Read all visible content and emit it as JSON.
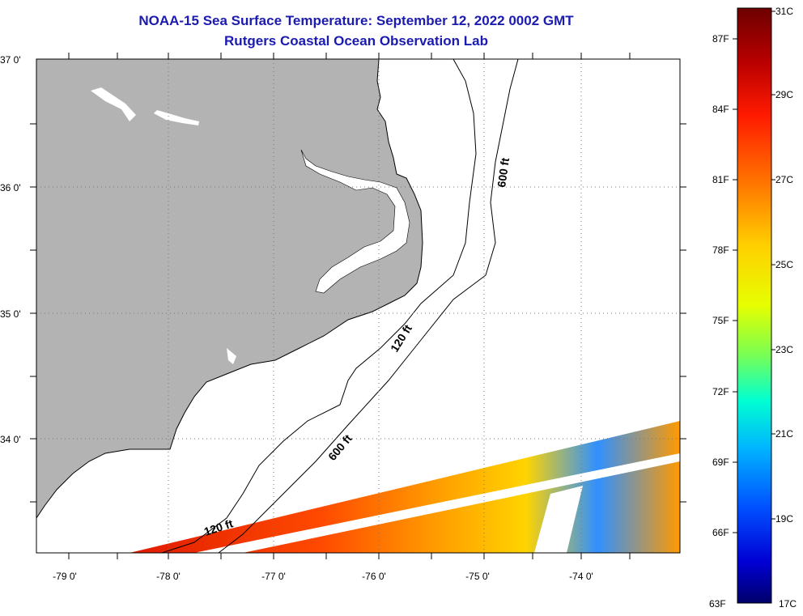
{
  "title": {
    "line1": "NOAA-15 Sea Surface Temperature:  September 12, 2022 0002 GMT",
    "line2": "Rutgers Coastal Ocean Observation Lab"
  },
  "map": {
    "lat_labels": [
      "37 0'",
      "36 0'",
      "35 0'",
      "34 0'"
    ],
    "lon_labels": [
      "-79 0'",
      "-78 0'",
      "-77 0'",
      "-76 0'",
      "-75 0'",
      "-74 0'"
    ],
    "contours": [
      "600 ft",
      "120 ft",
      "600 ft",
      "120 ft"
    ],
    "colors": {
      "land": "#b3b3b3",
      "coast_line": "#000000",
      "graticule": "#777777"
    }
  },
  "colorbar": {
    "fahrenheit": [
      "87F",
      "84F",
      "81F",
      "78F",
      "75F",
      "72F",
      "69F",
      "66F",
      "63F"
    ],
    "celsius": [
      "31C",
      "29C",
      "27C",
      "25C",
      "23C",
      "21C",
      "19C",
      "17C"
    ],
    "gradient": [
      "#6e0000",
      "#b80000",
      "#ff1a00",
      "#ff7a00",
      "#ffd000",
      "#e6ff00",
      "#7dff50",
      "#00ffd2",
      "#00b4ff",
      "#0050ff",
      "#0000d4",
      "#00006a"
    ]
  }
}
